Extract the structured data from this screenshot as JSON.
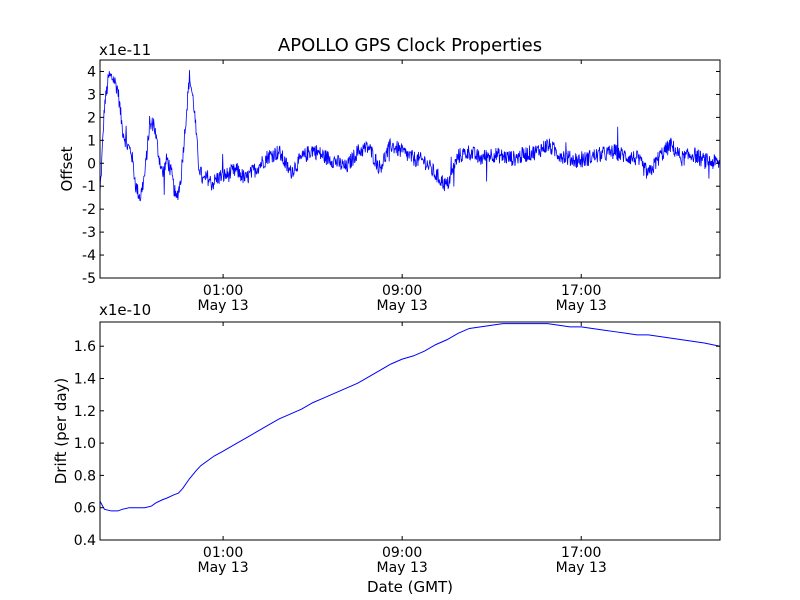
{
  "figure": {
    "title": "APOLLO GPS Clock Properties",
    "xlabel": "Date (GMT)"
  },
  "chart_data": [
    {
      "type": "line",
      "ylabel": "Offset",
      "yscale_label": "x1e-11",
      "ylim": [
        -5,
        4.5
      ],
      "yticks": [
        -5,
        -4,
        -3,
        -2,
        -1,
        0,
        1,
        2,
        3,
        4
      ],
      "ytick_labels": [
        "-5",
        "-4",
        "-3",
        "-2",
        "-1",
        "0",
        "1",
        "2",
        "3",
        "4"
      ],
      "xlim_hours": [
        -4.5,
        23.2
      ],
      "xticks": [
        {
          "hour": 1,
          "time": "01:00",
          "date": "May 13"
        },
        {
          "hour": 9,
          "time": "09:00",
          "date": "May 13"
        },
        {
          "hour": 17,
          "time": "17:00",
          "date": "May 13"
        }
      ],
      "color": "#0000ff",
      "trend": {
        "x": [
          -4.5,
          -4.3,
          -4.1,
          -3.9,
          -3.7,
          -3.5,
          -3.3,
          -3.1,
          -2.9,
          -2.7,
          -2.5,
          -2.3,
          -2.1,
          -1.9,
          -1.7,
          -1.5,
          -1.3,
          -1.1,
          -0.9,
          -0.7,
          -0.5,
          -0.3,
          -0.1,
          0.1,
          0.3,
          0.5,
          0.8,
          1.2,
          1.6,
          2.0,
          2.5,
          3.0,
          3.5,
          4.0,
          4.5,
          5.0,
          5.5,
          6.0,
          6.5,
          7.0,
          7.5,
          8.0,
          8.5,
          9.0,
          9.5,
          10.0,
          10.5,
          11.0,
          11.5,
          12.0,
          12.5,
          13.0,
          13.5,
          14.0,
          14.5,
          15.0,
          15.5,
          16.0,
          16.5,
          17.0,
          17.5,
          18.0,
          18.5,
          19.0,
          19.5,
          20.0,
          20.5,
          21.0,
          21.5,
          22.0,
          22.5,
          23.2
        ],
        "y": [
          -1.5,
          2.5,
          3.8,
          3.7,
          3.2,
          1.5,
          0.8,
          0.5,
          -1.0,
          -1.5,
          -0.5,
          1.5,
          1.8,
          0.5,
          -0.5,
          0.2,
          -0.5,
          -1.6,
          -0.8,
          1.5,
          3.8,
          2.5,
          0.0,
          -0.8,
          -0.6,
          -0.9,
          -0.6,
          -0.5,
          -0.3,
          -0.7,
          -0.2,
          0.3,
          0.5,
          -0.4,
          0.2,
          0.6,
          0.3,
          0.1,
          -0.2,
          0.5,
          0.7,
          -0.2,
          0.8,
          0.5,
          0.2,
          0.1,
          -0.5,
          -1.0,
          0.3,
          0.5,
          0.2,
          0.4,
          0.3,
          0.2,
          0.4,
          0.5,
          0.8,
          0.4,
          0.2,
          0.1,
          0.3,
          0.4,
          0.5,
          0.3,
          0.2,
          -0.5,
          0.3,
          0.8,
          0.2,
          0.4,
          0.1,
          0.0
        ]
      },
      "noise_amplitude": 0.35
    },
    {
      "type": "line",
      "ylabel": "Drift (per day)",
      "yscale_label": "x1e-10",
      "ylim": [
        0.4,
        1.75
      ],
      "yticks": [
        0.4,
        0.6,
        0.8,
        1.0,
        1.2,
        1.4,
        1.6
      ],
      "ytick_labels": [
        "0.4",
        "0.6",
        "0.8",
        "1.0",
        "1.2",
        "1.4",
        "1.6"
      ],
      "xlim_hours": [
        -4.5,
        23.2
      ],
      "xticks": [
        {
          "hour": 1,
          "time": "01:00",
          "date": "May 13"
        },
        {
          "hour": 9,
          "time": "09:00",
          "date": "May 13"
        },
        {
          "hour": 17,
          "time": "17:00",
          "date": "May 13"
        }
      ],
      "color": "#0000ff",
      "x": [
        -4.5,
        -4.3,
        -4.0,
        -3.7,
        -3.5,
        -3.2,
        -3.0,
        -2.7,
        -2.5,
        -2.2,
        -2.0,
        -1.7,
        -1.5,
        -1.2,
        -1.0,
        -0.8,
        -0.5,
        -0.2,
        0.0,
        0.3,
        0.6,
        1.0,
        1.5,
        2.0,
        2.5,
        3.0,
        3.5,
        4.0,
        4.5,
        5.0,
        5.5,
        6.0,
        6.5,
        7.0,
        7.5,
        8.0,
        8.5,
        9.0,
        9.5,
        10.0,
        10.5,
        11.0,
        11.5,
        12.0,
        12.5,
        13.0,
        13.5,
        14.0,
        14.5,
        15.0,
        15.5,
        16.0,
        16.5,
        17.0,
        17.5,
        18.0,
        18.5,
        19.0,
        19.5,
        20.0,
        20.5,
        21.0,
        21.5,
        22.0,
        22.5,
        23.2
      ],
      "y": [
        0.64,
        0.59,
        0.58,
        0.58,
        0.59,
        0.6,
        0.6,
        0.6,
        0.6,
        0.61,
        0.63,
        0.65,
        0.66,
        0.68,
        0.69,
        0.72,
        0.78,
        0.83,
        0.86,
        0.89,
        0.92,
        0.95,
        0.99,
        1.03,
        1.07,
        1.11,
        1.15,
        1.18,
        1.21,
        1.25,
        1.28,
        1.31,
        1.34,
        1.37,
        1.41,
        1.45,
        1.49,
        1.52,
        1.54,
        1.57,
        1.61,
        1.64,
        1.68,
        1.71,
        1.72,
        1.73,
        1.74,
        1.74,
        1.74,
        1.74,
        1.74,
        1.73,
        1.72,
        1.72,
        1.71,
        1.7,
        1.69,
        1.68,
        1.67,
        1.67,
        1.66,
        1.65,
        1.64,
        1.63,
        1.62,
        1.6
      ]
    }
  ]
}
